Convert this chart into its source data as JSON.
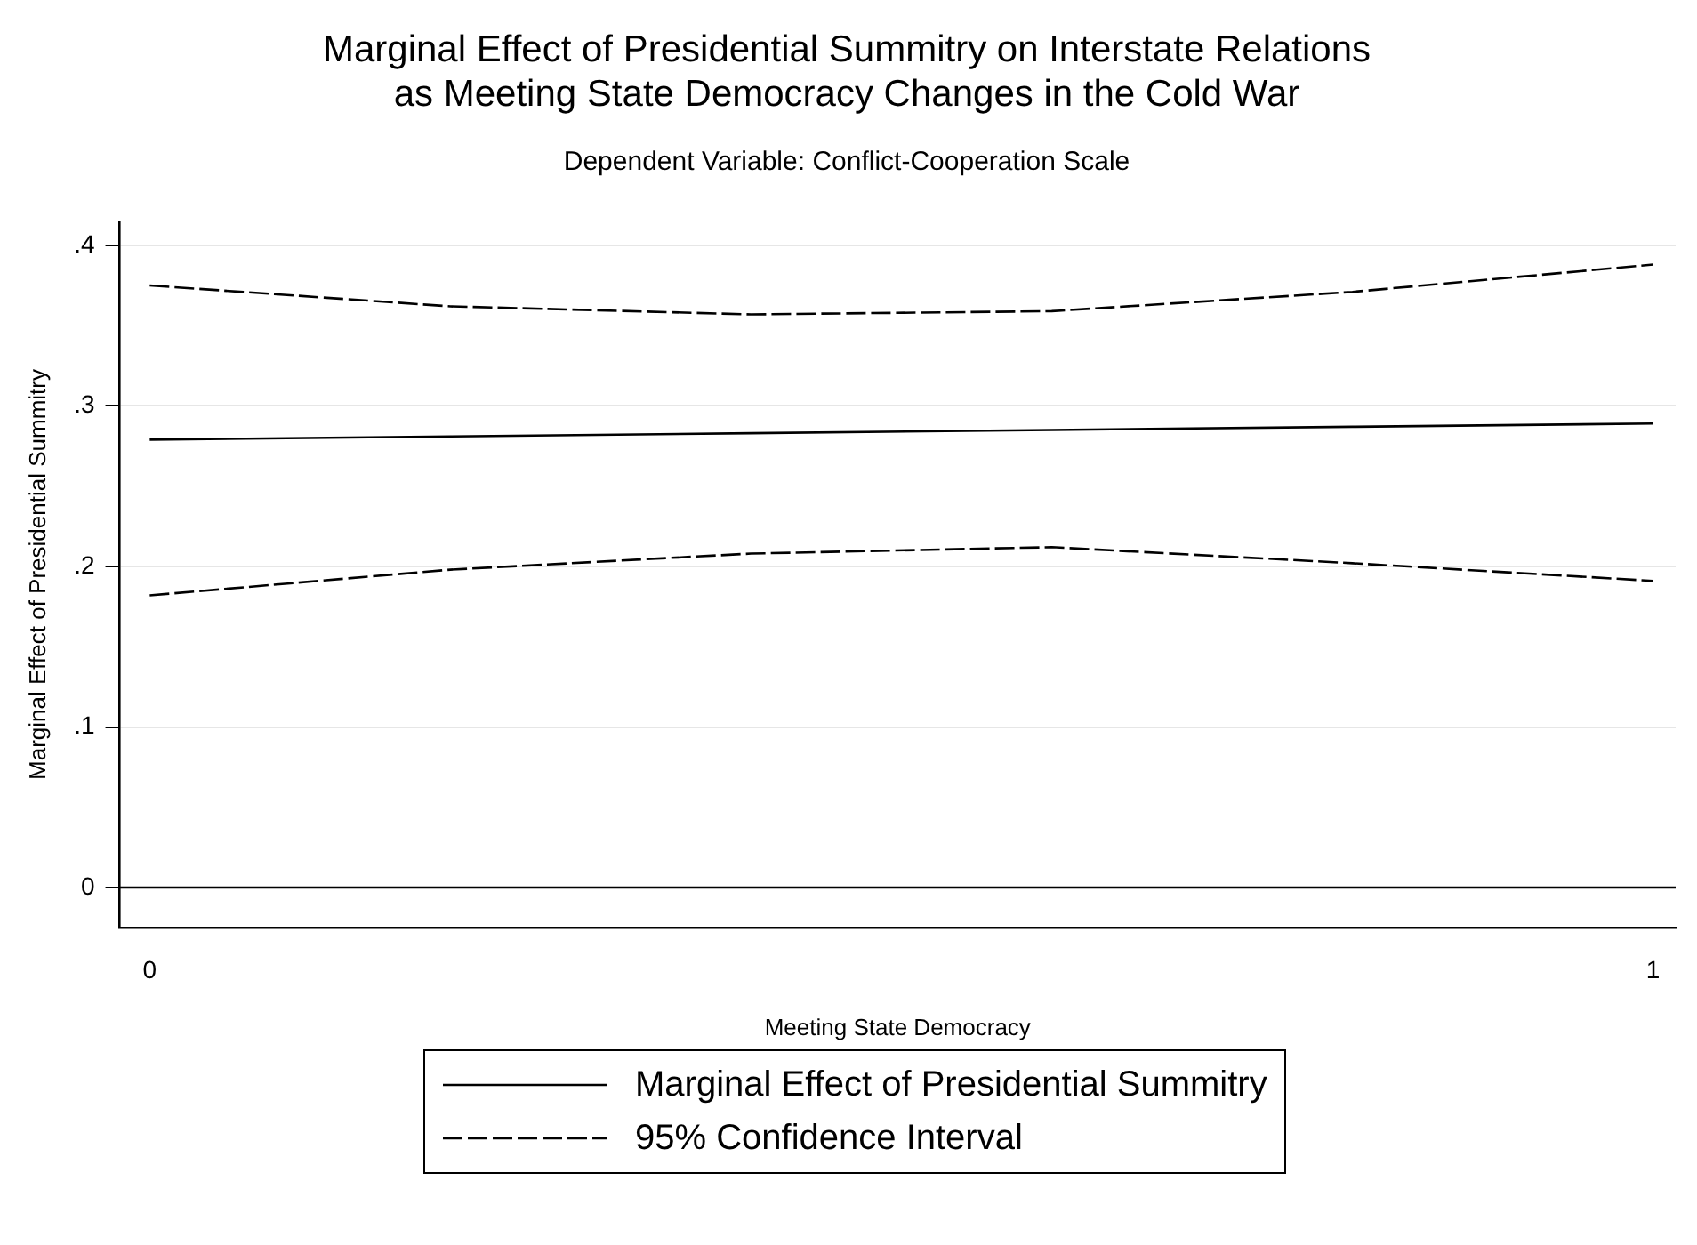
{
  "chart_data": {
    "type": "line",
    "title": "Marginal Effect of Presidential Summitry on Interstate Relations\nas Meeting State Democracy Changes in the Cold War",
    "subtitle": "Dependent Variable: Conflict-Cooperation Scale",
    "xlabel": "Meeting State Democracy",
    "ylabel": "Marginal Effect of Presidential Summitry",
    "x": [
      0,
      0.2,
      0.4,
      0.6,
      0.8,
      1
    ],
    "series": [
      {
        "name": "Marginal Effect of Presidential Summitry",
        "color": "#000000",
        "line_style": "solid",
        "values": [
          0.279,
          0.281,
          0.283,
          0.285,
          0.287,
          0.289
        ]
      },
      {
        "name": "95% Confidence Interval",
        "color": "#000000",
        "line_style": "dashed",
        "values": [
          0.375,
          0.362,
          0.357,
          0.359,
          0.371,
          0.388
        ]
      },
      {
        "color": "#000000",
        "line_style": "dashed",
        "values": [
          0.182,
          0.198,
          0.208,
          0.212,
          0.202,
          0.191
        ]
      }
    ],
    "xlim": [
      -0.02,
      1.015
    ],
    "xticks": [
      0,
      1
    ],
    "ylim": [
      -0.025,
      0.415
    ],
    "yticks": [
      {
        "value": 0,
        "label": "0"
      },
      {
        "value": 0.1,
        "label": ".1"
      },
      {
        "value": 0.2,
        "label": ".2"
      },
      {
        "value": 0.3,
        "label": ".3"
      },
      {
        "value": 0.4,
        "label": ".4"
      }
    ],
    "ref_lines": [
      {
        "axis": "y",
        "value": 0,
        "color": "#000000"
      }
    ],
    "grid": "y",
    "legend": "bottom",
    "marker": "none"
  }
}
